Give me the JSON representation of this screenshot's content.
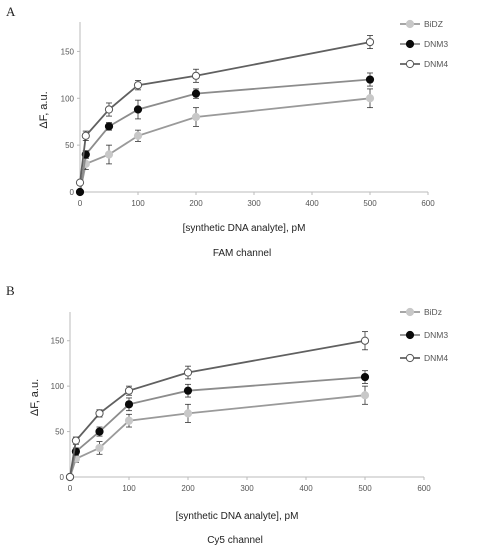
{
  "chart_data": [
    {
      "type": "line",
      "panel_label": "A",
      "xlabel": "[synthetic DNA analyte], pM",
      "ylabel": "ΔF, a.u.",
      "channel_label": "FAM channel",
      "xlim": [
        0,
        600
      ],
      "ylim": [
        0,
        175
      ],
      "x_ticks": [
        0,
        100,
        200,
        300,
        400,
        500,
        600
      ],
      "y_ticks": [
        0,
        50,
        100,
        150
      ],
      "grid": false,
      "legend_position": "top-right",
      "series": [
        {
          "name": "BiDZ",
          "marker": "filled-gray",
          "line_color": "#9a9a9a",
          "x": [
            0,
            10,
            50,
            100,
            200,
            500
          ],
          "y": [
            0,
            30,
            40,
            60,
            80,
            100
          ],
          "err": [
            0,
            6,
            10,
            6,
            10,
            10
          ]
        },
        {
          "name": "DNM3",
          "marker": "filled-black",
          "line_color": "#8c8c8c",
          "x": [
            0,
            10,
            50,
            100,
            200,
            500
          ],
          "y": [
            0,
            40,
            70,
            88,
            105,
            120
          ],
          "err": [
            0,
            4,
            4,
            10,
            5,
            7
          ]
        },
        {
          "name": "DNM4",
          "marker": "open",
          "line_color": "#606060",
          "x": [
            0,
            10,
            50,
            100,
            200,
            500
          ],
          "y": [
            10,
            60,
            88,
            114,
            124,
            160
          ],
          "err": [
            0,
            5,
            7,
            5,
            7,
            7
          ]
        }
      ]
    },
    {
      "type": "line",
      "panel_label": "B",
      "xlabel": "[synthetic DNA analyte], pM",
      "ylabel": "ΔF, a.u.",
      "channel_label": "Cy5 channel",
      "xlim": [
        0,
        600
      ],
      "ylim": [
        0,
        175
      ],
      "x_ticks": [
        0,
        100,
        200,
        300,
        400,
        500,
        600
      ],
      "y_ticks": [
        0,
        50,
        100,
        150
      ],
      "grid": false,
      "legend_position": "top-right",
      "series": [
        {
          "name": "BiDz",
          "marker": "filled-gray",
          "line_color": "#9a9a9a",
          "x": [
            0,
            10,
            50,
            100,
            200,
            500
          ],
          "y": [
            0,
            20,
            32,
            62,
            70,
            90
          ],
          "err": [
            0,
            4,
            7,
            7,
            10,
            10
          ]
        },
        {
          "name": "DNM3",
          "marker": "filled-black",
          "line_color": "#8c8c8c",
          "x": [
            0,
            10,
            50,
            100,
            200,
            500
          ],
          "y": [
            0,
            28,
            50,
            80,
            95,
            110
          ],
          "err": [
            0,
            4,
            5,
            7,
            7,
            7
          ]
        },
        {
          "name": "DNM4",
          "marker": "open",
          "line_color": "#606060",
          "x": [
            0,
            10,
            50,
            100,
            200,
            500
          ],
          "y": [
            0,
            40,
            70,
            95,
            115,
            150
          ],
          "err": [
            0,
            4,
            4,
            5,
            7,
            10
          ]
        }
      ]
    }
  ]
}
